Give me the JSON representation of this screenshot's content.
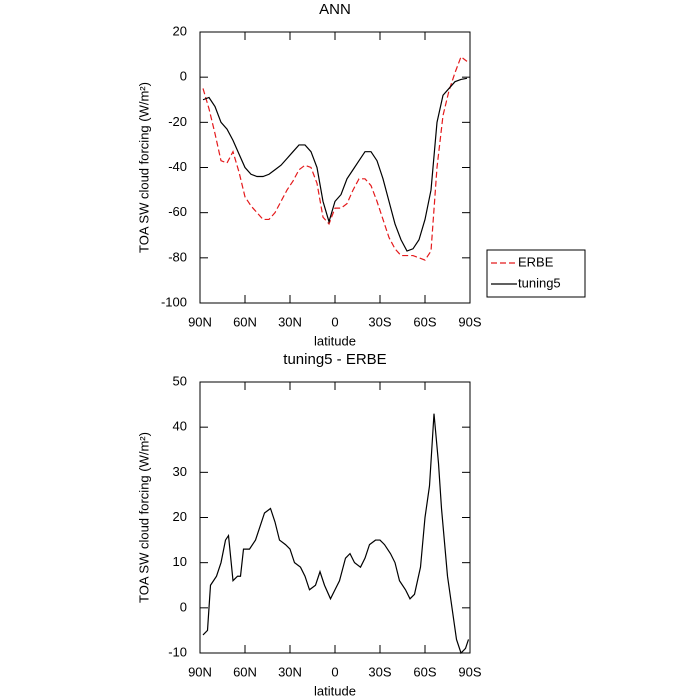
{
  "chart_data": [
    {
      "type": "line",
      "title": "ANN",
      "xlabel": "latitude",
      "ylabel": "TOA SW cloud forcing (W/m²)",
      "x": [
        88,
        84,
        80,
        76,
        72,
        68,
        64,
        60,
        56,
        52,
        48,
        44,
        40,
        36,
        32,
        28,
        24,
        20,
        16,
        12,
        8,
        4,
        0,
        -4,
        -8,
        -12,
        -16,
        -20,
        -24,
        -28,
        -32,
        -36,
        -40,
        -44,
        -48,
        -52,
        -56,
        -60,
        -64,
        -68,
        -72,
        -76,
        -80,
        -84,
        -88
      ],
      "series": [
        {
          "name": "ERBE",
          "color": "#e41a1c",
          "dash": true,
          "values": [
            -5,
            -14,
            -25,
            -37,
            -38,
            -33,
            -42,
            -53,
            -57,
            -60,
            -63,
            -63,
            -60,
            -55,
            -50,
            -46,
            -41,
            -39,
            -40,
            -47,
            -62,
            -65,
            -58,
            -58,
            -56,
            -50,
            -45,
            -45,
            -48,
            -55,
            -63,
            -71,
            -76,
            -79,
            -79,
            -79,
            -80,
            -81,
            -77,
            -40,
            -17,
            -6,
            2,
            9,
            7
          ]
        },
        {
          "name": "tuning5",
          "color": "#000000",
          "dash": false,
          "values": [
            -10,
            -9,
            -13,
            -20,
            -23,
            -28,
            -34,
            -40,
            -43,
            -44,
            -44,
            -43,
            -41,
            -39,
            -36,
            -33,
            -30,
            -30,
            -33,
            -40,
            -55,
            -64,
            -55,
            -52,
            -45,
            -41,
            -37,
            -33,
            -33,
            -37,
            -45,
            -55,
            -65,
            -72,
            -77,
            -76,
            -72,
            -63,
            -50,
            -20,
            -8,
            -5,
            -2,
            -1,
            -0.5
          ]
        }
      ],
      "xlim": [
        90,
        -90
      ],
      "xticks": [
        {
          "value": 90,
          "label": "90N"
        },
        {
          "value": 60,
          "label": "60N"
        },
        {
          "value": 30,
          "label": "30N"
        },
        0,
        {
          "value": -30,
          "label": "30S"
        },
        {
          "value": -60,
          "label": "60S"
        },
        {
          "value": -90,
          "label": "90S"
        }
      ],
      "ylim": [
        -100,
        20
      ],
      "yticks": [
        -100,
        -80,
        -60,
        -40,
        -20,
        0,
        20
      ],
      "legend": "right"
    },
    {
      "type": "line",
      "title": "tuning5 - ERBE",
      "xlabel": "latitude",
      "ylabel": "TOA SW cloud forcing (W/m²)",
      "x": [
        88,
        85,
        83,
        79,
        76,
        73,
        71,
        68,
        65,
        63,
        61,
        57,
        53,
        50,
        47,
        43,
        40,
        37,
        33,
        30,
        27,
        23,
        20,
        17,
        13,
        10,
        7,
        3,
        0,
        -3,
        -7,
        -10,
        -13,
        -17,
        -20,
        -23,
        -27,
        -30,
        -33,
        -37,
        -40,
        -43,
        -47,
        -50,
        -53,
        -57,
        -60,
        -63,
        -66,
        -69,
        -71,
        -75,
        -78,
        -81,
        -84,
        -87,
        -89
      ],
      "values": [
        -6,
        -5,
        5,
        7,
        10,
        15,
        16,
        6,
        7,
        7,
        13,
        13,
        15,
        18,
        21,
        22,
        19,
        15,
        14,
        13,
        10,
        9,
        7,
        4,
        5,
        8,
        5,
        2,
        4,
        6,
        11,
        12,
        10,
        9,
        11,
        14,
        15,
        15,
        14,
        12,
        10,
        6,
        4,
        2,
        3,
        9,
        20,
        27,
        43,
        32,
        22,
        7,
        0,
        -7,
        -10,
        -9,
        -7
      ],
      "color": "#000000",
      "xlim": [
        90,
        -90
      ],
      "xticks": [
        {
          "value": 90,
          "label": "90N"
        },
        {
          "value": 60,
          "label": "60N"
        },
        {
          "value": 30,
          "label": "30N"
        },
        0,
        {
          "value": -30,
          "label": "30S"
        },
        {
          "value": -60,
          "label": "60S"
        },
        {
          "value": -90,
          "label": "90S"
        }
      ],
      "ylim": [
        -10,
        50
      ],
      "yticks": [
        -10,
        0,
        10,
        20,
        30,
        40,
        50
      ]
    }
  ]
}
